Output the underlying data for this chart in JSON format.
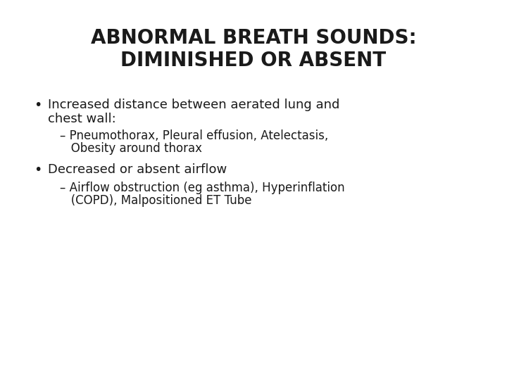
{
  "title_line1": "ABNORMAL BREATH SOUNDS:",
  "title_line2": "DIMINISHED OR ABSENT",
  "background_color": "#ffffff",
  "text_color": "#1a1a1a",
  "title_fontsize": 20,
  "title_fontweight": "bold",
  "body_fontsize": 13,
  "sub_fontsize": 12,
  "bullet1_line1": "Increased distance between aerated lung and",
  "bullet1_line2": "chest wall:",
  "sub1_line1": "– Pneumothorax, Pleural effusion, Atelectasis,",
  "sub1_line2": "   Obesity around thorax",
  "bullet2": "Decreased or absent airflow",
  "sub2_line1": "– Airflow obstruction (eg asthma), Hyperinflation",
  "sub2_line2": "   (COPD), Malpositioned ET Tube",
  "bullet_symbol": "•"
}
